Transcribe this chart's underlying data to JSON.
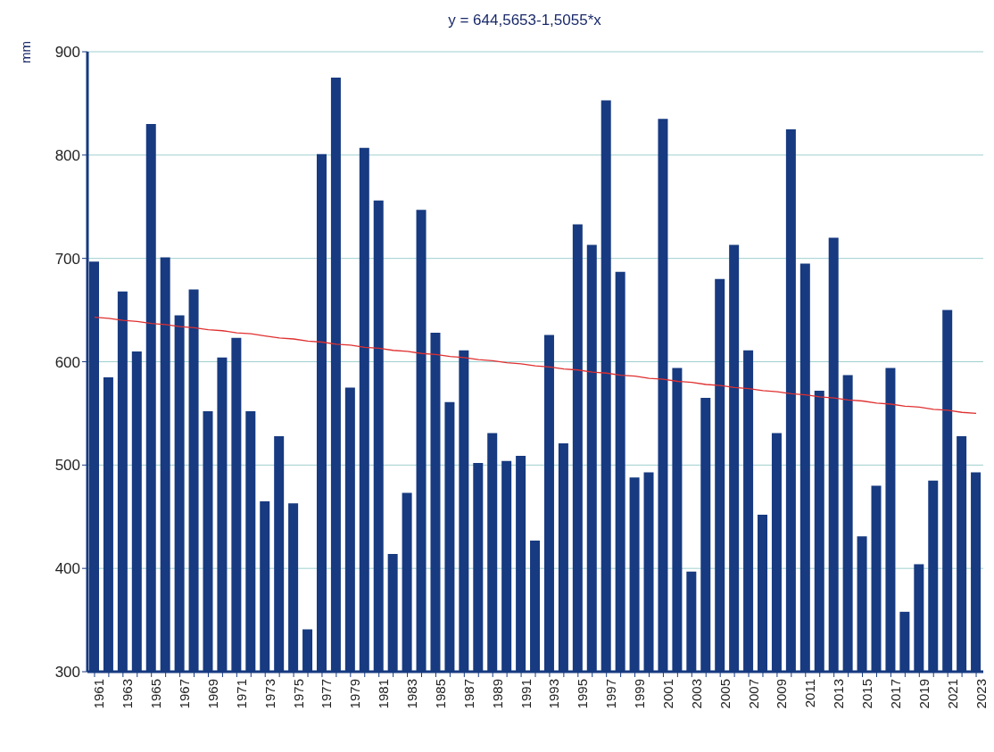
{
  "chart_data": {
    "type": "bar",
    "title": "y = 644,5653-1,5055*x",
    "ylabel": "mm",
    "categories": [
      "1961",
      null,
      "1963",
      null,
      "1965",
      null,
      "1967",
      null,
      "1969",
      null,
      "1971",
      null,
      "1973",
      null,
      "1975",
      null,
      "1977",
      null,
      "1979",
      null,
      "1981",
      null,
      "1983",
      null,
      "1985",
      null,
      "1987",
      null,
      "1989",
      null,
      "1991",
      null,
      "1993",
      null,
      "1995",
      null,
      "1997",
      null,
      "1999",
      null,
      "2001",
      null,
      "2003",
      null,
      "2005",
      null,
      "2007",
      null,
      "2009",
      null,
      "2011",
      null,
      "2013",
      null,
      "2015",
      null,
      "2017",
      null,
      "2019",
      null,
      "2021",
      null,
      "2023"
    ],
    "series": [
      {
        "color": "#173a80",
        "values": [
          697,
          585,
          668,
          610,
          830,
          701,
          645,
          670,
          552,
          604,
          623,
          552,
          465,
          528,
          463,
          341,
          801,
          875,
          575,
          807,
          756,
          414,
          473,
          747,
          628,
          561,
          611,
          502,
          531,
          504,
          509,
          427,
          626,
          521,
          733,
          713,
          853,
          687,
          488,
          493,
          835,
          594,
          397,
          565,
          680,
          713,
          611,
          452,
          531,
          825,
          695,
          572,
          720,
          587,
          431,
          480,
          594,
          358,
          404,
          485,
          650,
          528,
          493
        ]
      },
      {
        "type": "line",
        "color": "#e03030",
        "values": [
          643,
          642,
          640,
          639,
          637,
          636,
          634,
          633,
          631,
          630,
          628,
          627,
          625,
          623,
          622,
          620,
          619,
          617,
          616,
          614,
          613,
          611,
          610,
          608,
          607,
          605,
          604,
          602,
          601,
          599,
          598,
          596,
          595,
          593,
          592,
          590,
          589,
          587,
          586,
          584,
          583,
          581,
          580,
          578,
          577,
          575,
          574,
          572,
          571,
          569,
          568,
          566,
          565,
          563,
          562,
          560,
          559,
          557,
          556,
          554,
          553,
          551,
          550
        ]
      }
    ],
    "ylim": [
      300,
      900
    ],
    "yticks": [
      300,
      400,
      500,
      600,
      700,
      800,
      900
    ],
    "grid": "y"
  }
}
